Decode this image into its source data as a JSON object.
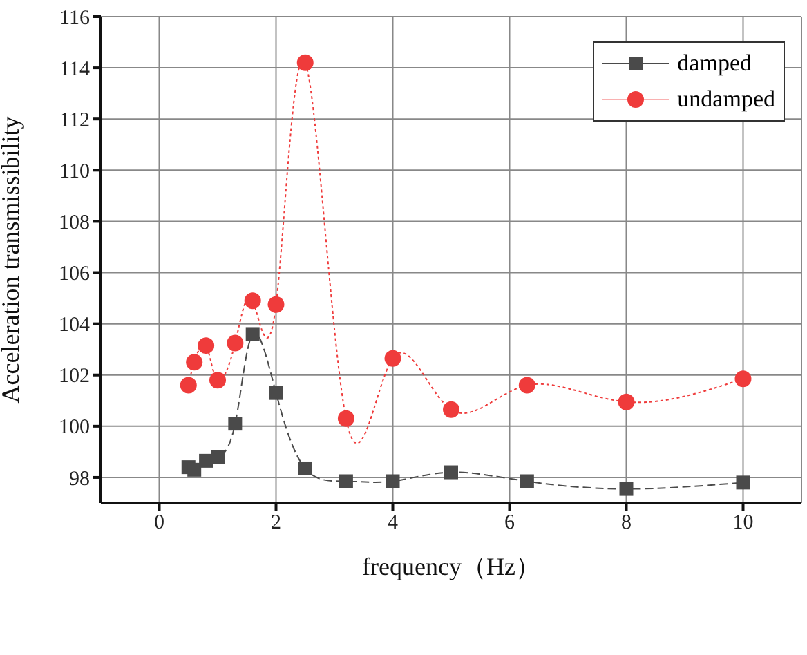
{
  "chart_data": {
    "type": "line",
    "xlabel": "frequency（Hz）",
    "ylabel": "Acceleration transmissibility",
    "xlim": [
      -1,
      11
    ],
    "xticks": [
      0,
      2,
      4,
      6,
      8,
      10
    ],
    "ylim": [
      97,
      116
    ],
    "yticks": [
      98,
      100,
      102,
      104,
      106,
      108,
      110,
      112,
      114,
      116
    ],
    "grid": true,
    "legend": "top right",
    "x": [
      0.5,
      0.6,
      0.8,
      1.0,
      1.3,
      1.6,
      2.0,
      2.5,
      3.2,
      4.0,
      5.0,
      6.3,
      8.0,
      10.0
    ],
    "series": [
      {
        "name": "damped",
        "color": "#4a4a4a",
        "marker": "square",
        "line_style": "dashed",
        "values": [
          98.4,
          98.3,
          98.65,
          98.8,
          100.1,
          103.6,
          101.3,
          98.35,
          97.85,
          97.85,
          98.2,
          97.85,
          97.55,
          97.8
        ]
      },
      {
        "name": "undamped",
        "color": "#ef3b3b",
        "marker": "circle",
        "line_style": "dotted",
        "values": [
          101.6,
          102.5,
          103.15,
          101.8,
          103.25,
          104.9,
          104.75,
          114.2,
          100.3,
          102.65,
          100.65,
          101.6,
          100.95,
          101.85
        ]
      }
    ]
  }
}
